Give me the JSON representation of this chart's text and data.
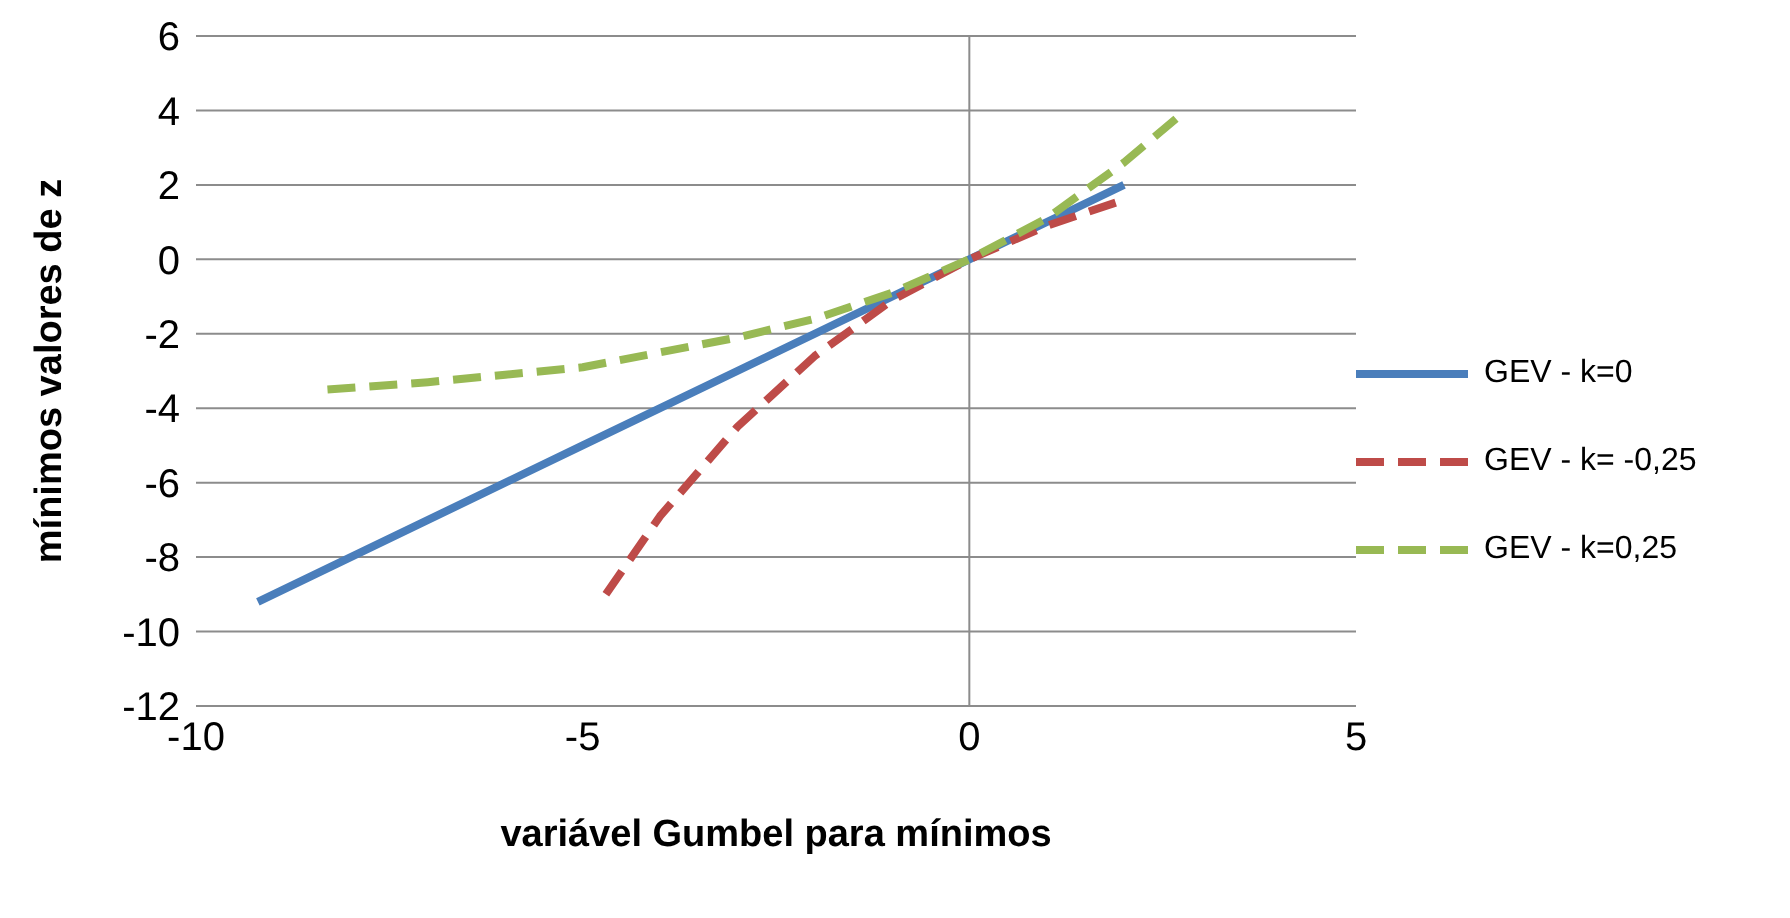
{
  "chart_data": {
    "type": "line",
    "xlabel": "variável Gumbel para mínimos",
    "ylabel": "mínimos valores de z",
    "xlim": [
      -10,
      5
    ],
    "xticks": [
      -10,
      -5,
      0,
      5
    ],
    "ylim": [
      -12,
      6
    ],
    "yticks": [
      -12,
      -10,
      -8,
      -6,
      -4,
      -2,
      0,
      2,
      4,
      6
    ],
    "grid": "y",
    "legend": "right",
    "ref_lines": [
      {
        "axis": "x",
        "value": 0,
        "color": "#8c8c8c"
      }
    ],
    "marker": "none",
    "series": [
      {
        "name": "GEV - k=0",
        "color": "#4a7ebb",
        "line_style": "solid",
        "x": [
          -9.2,
          -5,
          0,
          2
        ],
        "values": [
          -9.2,
          -5,
          0,
          2
        ]
      },
      {
        "name": "GEV - k= -0,25",
        "color": "#be4b48",
        "line_style": "dashed",
        "x": [
          -4.7,
          -4,
          -3,
          -2,
          -1,
          0,
          1,
          2
        ],
        "values": [
          -9.0,
          -6.9,
          -4.5,
          -2.6,
          -1.1,
          0,
          0.9,
          1.6
        ]
      },
      {
        "name": "GEV - k=0,25",
        "color": "#98b954",
        "line_style": "dashed",
        "x": [
          -8.3,
          -7,
          -6,
          -5,
          -4,
          -3,
          -2,
          -1,
          0,
          1,
          2,
          2.8
        ],
        "values": [
          -3.5,
          -3.3,
          -3.1,
          -2.9,
          -2.5,
          -2.1,
          -1.6,
          -0.9,
          0,
          1.1,
          2.6,
          4.0
        ]
      }
    ]
  }
}
